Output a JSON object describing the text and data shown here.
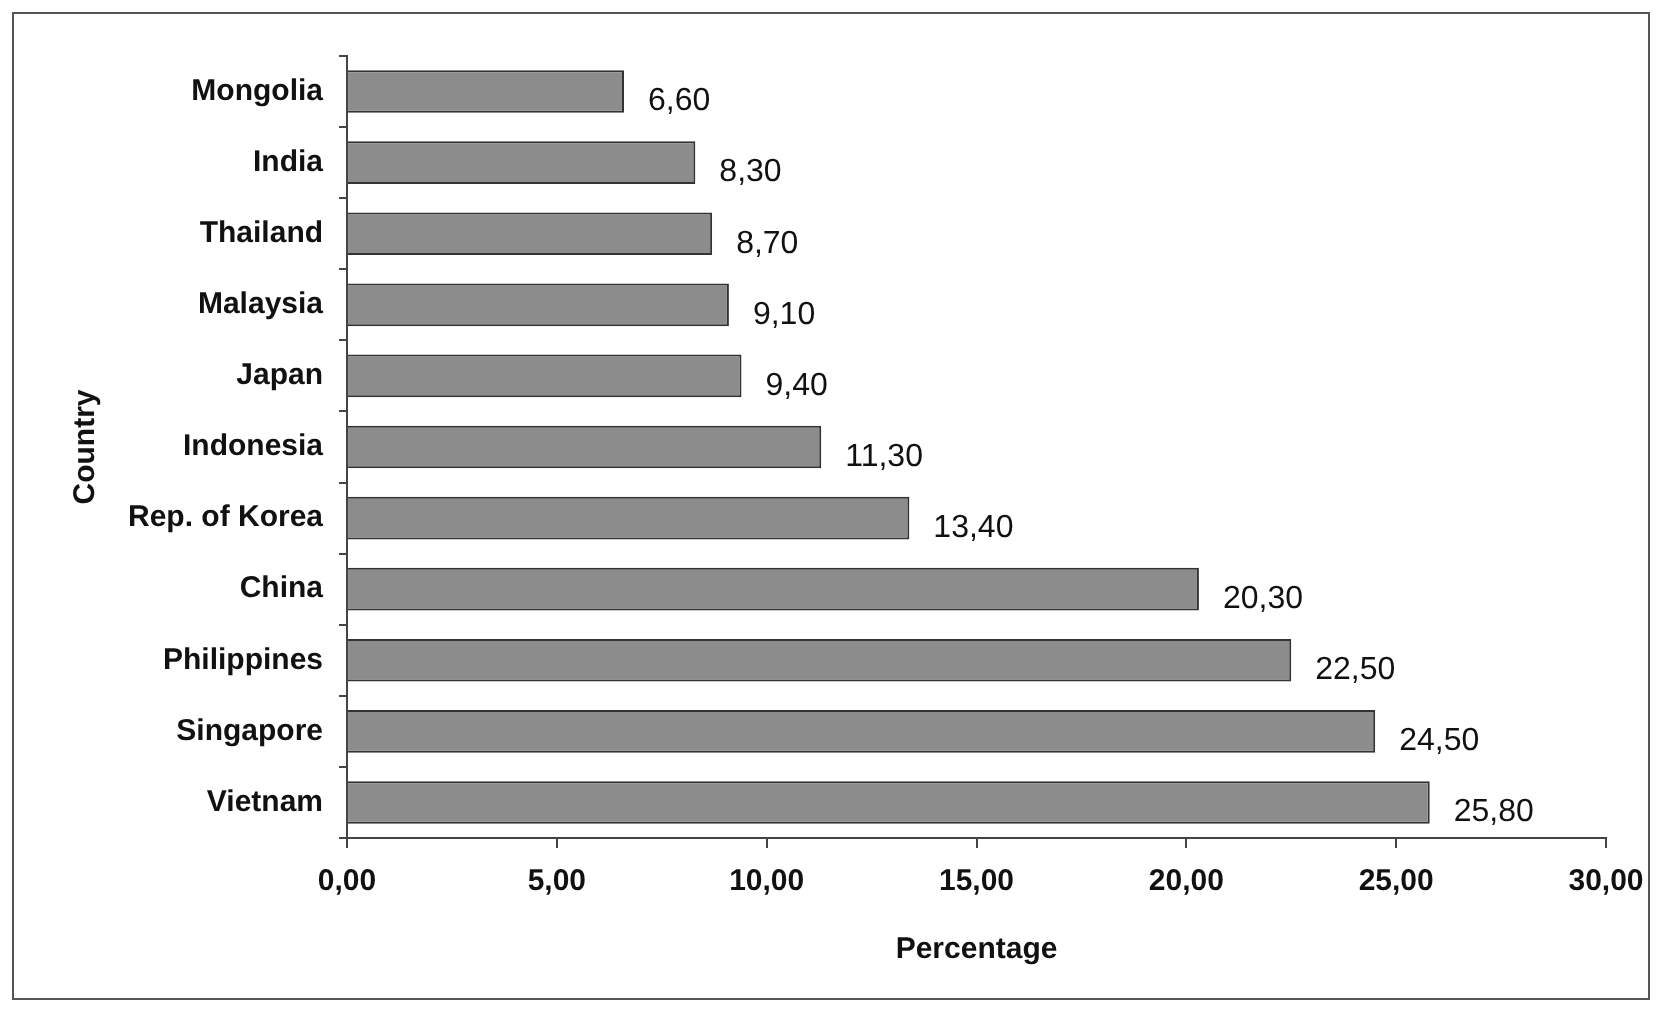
{
  "chart_data": {
    "type": "bar",
    "orientation": "horizontal",
    "xlabel": "Percentage",
    "ylabel": "Country",
    "categories": [
      "Mongolia",
      "India",
      "Thailand",
      "Malaysia",
      "Japan",
      "Indonesia",
      "Rep. of Korea",
      "China",
      "Philippines",
      "Singapore",
      "Vietnam"
    ],
    "values": [
      6.6,
      8.3,
      8.7,
      9.1,
      9.4,
      11.3,
      13.4,
      20.3,
      22.5,
      24.5,
      25.8
    ],
    "value_labels": [
      "6,60",
      "8,30",
      "8,70",
      "9,10",
      "9,40",
      "11,30",
      "13,40",
      "20,30",
      "22,50",
      "24,50",
      "25,80"
    ],
    "color": "#8c8c8c",
    "xlim": [
      0,
      30
    ],
    "xticks": [
      {
        "value": 0,
        "label": "0,00"
      },
      {
        "value": 5,
        "label": "5,00"
      },
      {
        "value": 10,
        "label": "10,00"
      },
      {
        "value": 15,
        "label": "15,00"
      },
      {
        "value": 20,
        "label": "20,00"
      },
      {
        "value": 25,
        "label": "25,00"
      },
      {
        "value": 30,
        "label": "30,00"
      }
    ],
    "grid": false,
    "legend": false
  }
}
